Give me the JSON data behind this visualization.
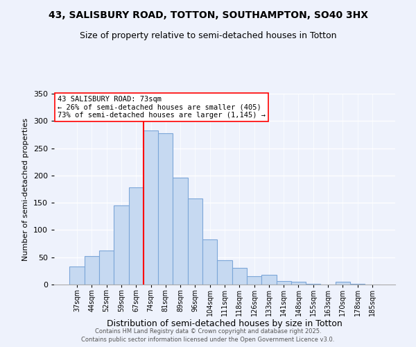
{
  "title": "43, SALISBURY ROAD, TOTTON, SOUTHAMPTON, SO40 3HX",
  "subtitle": "Size of property relative to semi-detached houses in Totton",
  "xlabel": "Distribution of semi-detached houses by size in Totton",
  "ylabel": "Number of semi-detached properties",
  "bar_labels": [
    "37sqm",
    "44sqm",
    "52sqm",
    "59sqm",
    "67sqm",
    "74sqm",
    "81sqm",
    "89sqm",
    "96sqm",
    "104sqm",
    "111sqm",
    "118sqm",
    "126sqm",
    "133sqm",
    "141sqm",
    "148sqm",
    "155sqm",
    "163sqm",
    "170sqm",
    "178sqm",
    "185sqm"
  ],
  "bar_values": [
    33,
    52,
    62,
    145,
    178,
    282,
    278,
    196,
    158,
    83,
    45,
    31,
    15,
    18,
    6,
    5,
    1,
    0,
    5,
    1,
    0
  ],
  "bar_color": "#c6d9f1",
  "bar_edge_color": "#7ca6d8",
  "vline_index": 5,
  "vline_color": "red",
  "annotation_title": "43 SALISBURY ROAD: 73sqm",
  "annotation_line1": "← 26% of semi-detached houses are smaller (405)",
  "annotation_line2": "73% of semi-detached houses are larger (1,145) →",
  "annotation_box_color": "white",
  "annotation_box_edge": "red",
  "ylim": [
    0,
    350
  ],
  "yticks": [
    0,
    50,
    100,
    150,
    200,
    250,
    300,
    350
  ],
  "footer1": "Contains HM Land Registry data © Crown copyright and database right 2025.",
  "footer2": "Contains public sector information licensed under the Open Government Licence v3.0.",
  "bg_color": "#eef2fc",
  "title_fontsize": 10,
  "subtitle_fontsize": 9
}
